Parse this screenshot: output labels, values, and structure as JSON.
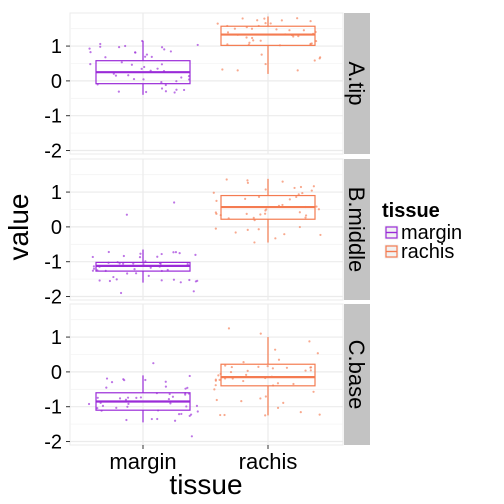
{
  "chart_data": {
    "type": "box",
    "xlabel": "tissue",
    "ylabel": "value",
    "categories": [
      "margin",
      "rachis"
    ],
    "y_ticks": [
      -2,
      -1,
      0,
      1
    ],
    "ylim": [
      -2.1,
      1.95
    ],
    "grid": true,
    "legend": {
      "title": "tissue",
      "placement": "right",
      "entries": [
        {
          "name": "margin",
          "color": "#9a2bd8"
        },
        {
          "name": "rachis",
          "color": "#f47b51"
        }
      ]
    },
    "colors": {
      "margin": "#9a2bd8",
      "rachis": "#f47b51",
      "panel_bg": "#ffffff",
      "grid": "#ebebeb",
      "strip_bg": "#c3c3c3"
    },
    "facets": [
      {
        "label": "A.tip",
        "boxes": [
          {
            "category": "margin",
            "min": -0.4,
            "q1": -0.08,
            "median": 0.25,
            "q3": 0.58,
            "max": 1.15
          },
          {
            "category": "rachis",
            "min": 0.2,
            "q1": 1.02,
            "median": 1.33,
            "q3": 1.57,
            "max": 1.85
          }
        ]
      },
      {
        "label": "B.middle",
        "boxes": [
          {
            "category": "margin",
            "min": -1.6,
            "q1": -1.27,
            "median": -1.12,
            "q3": -1.02,
            "max": -0.65,
            "outliers": [
              0.7,
              0.35,
              -1.85,
              -1.9
            ]
          },
          {
            "category": "rachis",
            "min": -0.45,
            "q1": 0.22,
            "median": 0.57,
            "q3": 0.9,
            "max": 1.38
          }
        ]
      },
      {
        "label": "C.base",
        "boxes": [
          {
            "category": "margin",
            "min": -1.45,
            "q1": -1.1,
            "median": -0.85,
            "q3": -0.6,
            "max": -0.1,
            "outliers": [
              0.25,
              -1.85
            ]
          },
          {
            "category": "rachis",
            "min": -1.25,
            "q1": -0.4,
            "median": -0.15,
            "q3": 0.22,
            "max": 1.0,
            "outliers": [
              1.25,
              1.1
            ]
          }
        ]
      }
    ]
  }
}
